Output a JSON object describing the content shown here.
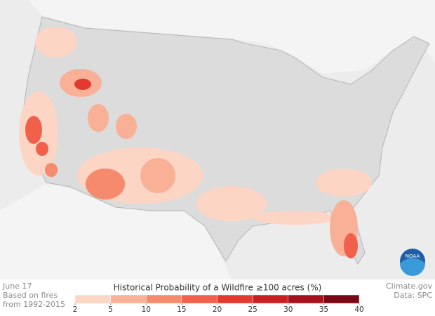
{
  "date": "June 17",
  "note": [
    "Based on fires",
    "from 1992-2015"
  ],
  "legend": {
    "title": "Historical Probability of a Wildfire ≥100 acres (%)",
    "ticks": [
      2,
      5,
      10,
      15,
      20,
      25,
      30,
      35,
      40
    ],
    "colors": [
      "#fcd5c4",
      "#f8b196",
      "#f58a6c",
      "#f0604a",
      "#e23a2e",
      "#c81f23",
      "#a5121c",
      "#7a0714"
    ]
  },
  "credit": "Climate.gov",
  "source": "Data: SPC",
  "logo": "NOAA"
}
